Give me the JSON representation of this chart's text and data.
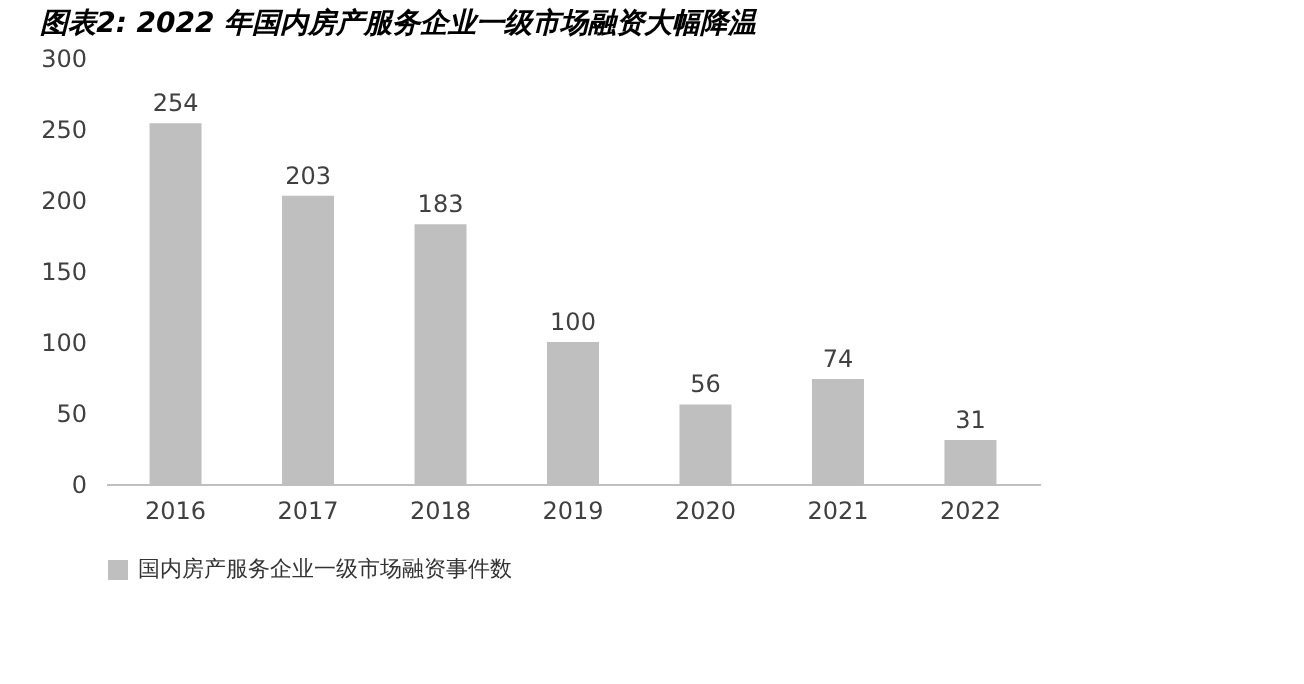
{
  "chart_data": {
    "type": "bar",
    "title": "图表2:  2022 年国内房产服务企业一级市场融资大幅降温",
    "categories": [
      "2016",
      "2017",
      "2018",
      "2019",
      "2020",
      "2021",
      "2022"
    ],
    "series": [
      {
        "name": "国内房产服务企业一级市场融资事件数",
        "color": "#bfbfbf",
        "values": [
          254,
          203,
          183,
          100,
          56,
          74,
          31
        ]
      }
    ],
    "ylim": [
      0,
      300
    ],
    "yticks": [
      0,
      50,
      100,
      150,
      200,
      250,
      300
    ],
    "grid": false,
    "legend": "bottom",
    "data_labels": true
  }
}
